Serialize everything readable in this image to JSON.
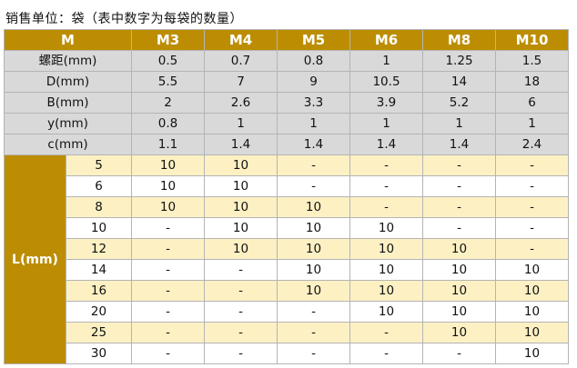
{
  "caption": "销售单位：袋（表中数字为每袋的数量）",
  "header": {
    "first": "M",
    "sizes": [
      "M3",
      "M4",
      "M5",
      "M6",
      "M8",
      "M10"
    ]
  },
  "spec_rows": [
    {
      "name": "螺距(mm)",
      "values": [
        "0.5",
        "0.7",
        "0.8",
        "1",
        "1.25",
        "1.5"
      ]
    },
    {
      "name": "D(mm)",
      "values": [
        "5.5",
        "7",
        "9",
        "10.5",
        "14",
        "18"
      ]
    },
    {
      "name": "B(mm)",
      "values": [
        "2",
        "2.6",
        "3.3",
        "3.9",
        "5.2",
        "6"
      ]
    },
    {
      "name": "y(mm)",
      "values": [
        "0.8",
        "1",
        "1",
        "1",
        "1",
        "1"
      ]
    },
    {
      "name": "c(mm)",
      "values": [
        "1.1",
        "1.4",
        "1.4",
        "1.4",
        "1.4",
        "2.4"
      ]
    }
  ],
  "length_label": "L(mm)",
  "length_rows": [
    {
      "length": "5",
      "values": [
        "10",
        "10",
        "-",
        "-",
        "-",
        "-"
      ]
    },
    {
      "length": "6",
      "values": [
        "10",
        "10",
        "-",
        "-",
        "-",
        "-"
      ]
    },
    {
      "length": "8",
      "values": [
        "10",
        "10",
        "10",
        "-",
        "-",
        "-"
      ]
    },
    {
      "length": "10",
      "values": [
        "-",
        "10",
        "10",
        "10",
        "-",
        "-"
      ]
    },
    {
      "length": "12",
      "values": [
        "-",
        "10",
        "10",
        "10",
        "10",
        "-"
      ]
    },
    {
      "length": "14",
      "values": [
        "-",
        "-",
        "10",
        "10",
        "10",
        "10"
      ]
    },
    {
      "length": "16",
      "values": [
        "-",
        "-",
        "10",
        "10",
        "10",
        "10"
      ]
    },
    {
      "length": "20",
      "values": [
        "-",
        "-",
        "-",
        "10",
        "10",
        "10"
      ]
    },
    {
      "length": "25",
      "values": [
        "-",
        "-",
        "-",
        "-",
        "10",
        "10"
      ]
    },
    {
      "length": "30",
      "values": [
        "-",
        "-",
        "-",
        "-",
        "-",
        "10"
      ]
    }
  ],
  "colors": {
    "header_gold": "#bc8d02",
    "spec_gray": "#d9d9d9",
    "stripe_cream": "#fdf1c4",
    "stripe_white": "#ffffff"
  }
}
